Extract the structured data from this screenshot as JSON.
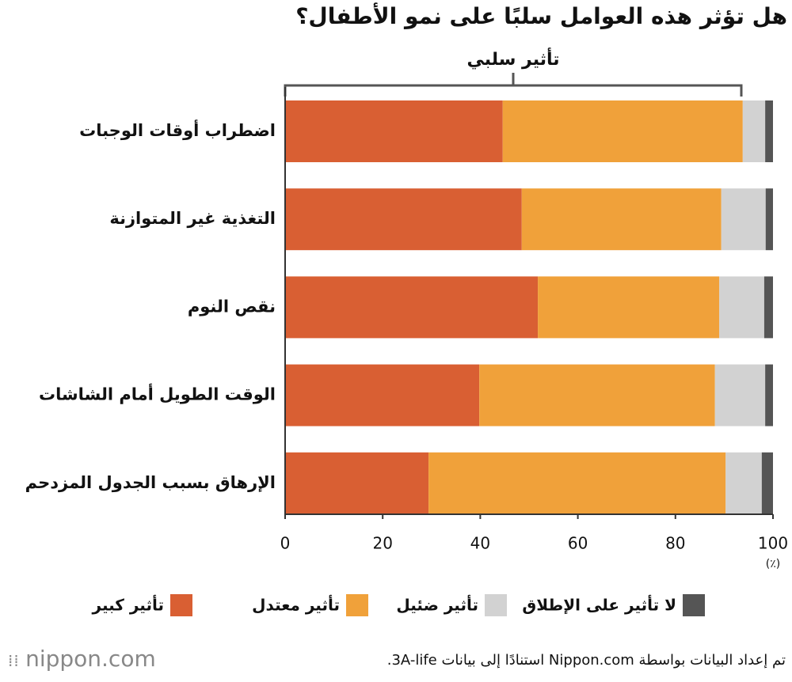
{
  "chart_data": {
    "type": "stacked-barh",
    "title": "هل تؤثر هذه العوامل سلبًا على نمو الأطفال؟",
    "annotation": "تأثير سلبي",
    "x_unit": "(٪)",
    "categories": [
      "اضطراب أوقات الوجبات",
      "التغذية غير المتوازنة",
      "نقص النوم",
      "الوقت الطويل أمام الشاشات",
      "الإرهاق بسبب الجدول المزدحم"
    ],
    "series": [
      {
        "name": "تأثير كبير",
        "color": "#d95f33",
        "values": [
          44.6,
          48.5,
          51.8,
          39.8,
          29.4
        ]
      },
      {
        "name": "تأثير معتدل",
        "color": "#f0a13a",
        "values": [
          49.2,
          40.9,
          37.2,
          48.3,
          60.9
        ]
      },
      {
        "name": "تأثير ضئيل",
        "color": "#d2d2d2",
        "values": [
          4.6,
          9.1,
          9.2,
          10.3,
          7.4
        ]
      },
      {
        "name": "لا تأثير على الإطلاق",
        "color": "#555555",
        "values": [
          1.6,
          1.5,
          1.8,
          1.6,
          2.3
        ]
      }
    ],
    "xlim": [
      0,
      100
    ],
    "xticks": [
      0,
      20,
      40,
      60,
      80,
      100
    ],
    "source": "تم إعداد البيانات بواسطة Nippon.com استنادًا إلى بيانات 3A-life.",
    "logo": "nippon.com"
  }
}
